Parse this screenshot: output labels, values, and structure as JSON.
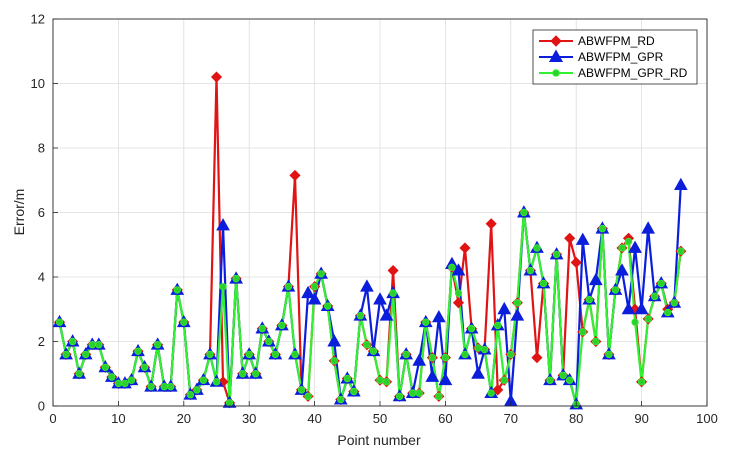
{
  "colors": {
    "rd": "#E01414",
    "gpr": "#0A1EDC",
    "gpr_rd": "#32F032",
    "marker_green": "#2CD02C",
    "grid": "#DDDDDD",
    "axis": "#262626"
  },
  "chart_data": {
    "type": "line",
    "xlabel": "Point number",
    "ylabel": "Error/m",
    "xlim": [
      0,
      100
    ],
    "ylim": [
      0,
      12
    ],
    "xticks": [
      0,
      10,
      20,
      30,
      40,
      50,
      60,
      70,
      80,
      90,
      100
    ],
    "yticks": [
      0,
      2,
      4,
      6,
      8,
      10,
      12
    ],
    "grid": true,
    "legend_position": "top-right",
    "x": [
      1,
      2,
      3,
      4,
      5,
      6,
      7,
      8,
      9,
      10,
      11,
      12,
      13,
      14,
      15,
      16,
      17,
      18,
      19,
      20,
      21,
      22,
      23,
      24,
      25,
      26,
      27,
      28,
      29,
      30,
      31,
      32,
      33,
      34,
      35,
      36,
      37,
      38,
      39,
      40,
      41,
      42,
      43,
      44,
      45,
      46,
      47,
      48,
      49,
      50,
      51,
      52,
      53,
      54,
      55,
      56,
      57,
      58,
      59,
      60,
      61,
      62,
      63,
      64,
      65,
      66,
      67,
      68,
      69,
      70,
      71,
      72,
      73,
      74,
      75,
      76,
      77,
      78,
      79,
      80,
      81,
      82,
      83,
      84,
      85,
      86,
      87,
      88,
      89,
      90,
      91,
      92,
      93,
      94,
      95,
      96
    ],
    "series": [
      {
        "name": "ABWFPM_RD",
        "marker": "diamond",
        "values": [
          2.6,
          1.6,
          2.0,
          1.0,
          1.6,
          1.9,
          1.9,
          1.2,
          0.9,
          0.7,
          0.7,
          0.8,
          1.7,
          1.2,
          0.6,
          1.9,
          0.6,
          0.6,
          3.6,
          2.6,
          0.35,
          0.5,
          0.8,
          1.6,
          10.2,
          0.75,
          0.1,
          3.95,
          1.0,
          1.6,
          1.0,
          2.4,
          2.0,
          1.6,
          2.5,
          3.7,
          7.15,
          0.5,
          0.3,
          3.7,
          4.1,
          3.1,
          1.4,
          0.2,
          0.85,
          0.45,
          2.8,
          1.9,
          1.7,
          0.8,
          0.75,
          4.2,
          0.3,
          1.6,
          0.4,
          0.4,
          2.6,
          1.5,
          0.3,
          1.5,
          4.3,
          3.2,
          4.9,
          2.4,
          1.8,
          1.75,
          5.65,
          0.5,
          0.8,
          1.6,
          3.2,
          6.0,
          4.2,
          1.5,
          3.8,
          0.8,
          4.7,
          0.95,
          5.2,
          4.45,
          2.3,
          3.3,
          2.0,
          5.5,
          1.6,
          3.6,
          4.9,
          5.2,
          3.0,
          0.75,
          2.7,
          3.4,
          3.8,
          3.0,
          3.2,
          4.8
        ]
      },
      {
        "name": "ABWFPM_GPR",
        "marker": "triangle",
        "values": [
          2.6,
          1.6,
          2.0,
          1.0,
          1.6,
          1.9,
          1.9,
          1.2,
          0.9,
          0.7,
          0.7,
          0.8,
          1.7,
          1.2,
          0.6,
          1.9,
          0.6,
          0.6,
          3.6,
          2.6,
          0.35,
          0.5,
          0.8,
          1.6,
          0.75,
          5.6,
          0.1,
          3.95,
          1.0,
          1.6,
          1.0,
          2.4,
          2.0,
          1.6,
          2.5,
          3.7,
          1.6,
          0.5,
          3.5,
          3.3,
          4.1,
          3.1,
          2.0,
          0.2,
          0.85,
          0.45,
          2.8,
          3.7,
          1.7,
          3.3,
          2.8,
          3.5,
          0.3,
          1.6,
          0.4,
          1.4,
          2.6,
          0.9,
          2.75,
          0.8,
          4.4,
          4.2,
          1.6,
          2.4,
          1.0,
          1.75,
          0.4,
          2.5,
          3.0,
          0.15,
          2.8,
          6.0,
          4.2,
          4.9,
          3.8,
          0.8,
          4.7,
          0.95,
          0.8,
          0.05,
          5.15,
          3.3,
          3.9,
          5.5,
          1.6,
          3.6,
          4.2,
          3.0,
          4.9,
          3.0,
          5.5,
          3.4,
          3.8,
          2.9,
          3.2,
          6.85
        ]
      },
      {
        "name": "ABWFPM_GPR_RD",
        "marker": "circle",
        "values": [
          2.6,
          1.6,
          2.0,
          1.0,
          1.6,
          1.9,
          1.9,
          1.2,
          0.9,
          0.7,
          0.7,
          0.8,
          1.7,
          1.2,
          0.6,
          1.9,
          0.6,
          0.6,
          3.6,
          2.6,
          0.35,
          0.5,
          0.8,
          1.6,
          0.75,
          3.7,
          0.1,
          3.95,
          1.0,
          1.6,
          1.0,
          2.4,
          2.0,
          1.6,
          2.5,
          3.7,
          1.6,
          0.5,
          0.3,
          3.7,
          4.1,
          3.1,
          1.4,
          0.2,
          0.85,
          0.45,
          2.8,
          1.9,
          1.7,
          0.8,
          0.75,
          3.5,
          0.3,
          1.6,
          0.4,
          0.4,
          2.6,
          1.5,
          0.3,
          1.5,
          4.3,
          3.5,
          1.6,
          2.4,
          1.8,
          1.75,
          0.4,
          2.5,
          0.8,
          1.6,
          3.2,
          6.0,
          4.2,
          4.9,
          3.8,
          0.8,
          4.7,
          0.95,
          0.8,
          0.05,
          2.3,
          3.3,
          2.0,
          5.5,
          1.6,
          3.6,
          4.9,
          5.1,
          2.6,
          0.75,
          2.7,
          3.4,
          3.8,
          2.9,
          3.2,
          4.8
        ]
      }
    ]
  }
}
